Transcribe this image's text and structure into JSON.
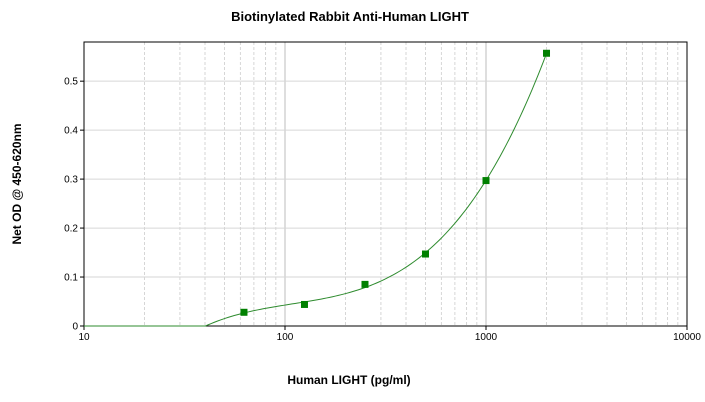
{
  "chart_data": {
    "type": "scatter",
    "title": "Biotinylated Rabbit Anti-Human LIGHT",
    "xlabel": "Human LIGHT (pg/ml)",
    "ylabel": "Net OD @ 450-620nm",
    "xscale": "log",
    "xlim": [
      10,
      10000
    ],
    "ylim": [
      0,
      0.58
    ],
    "xticks": [
      "10",
      "100",
      "1000",
      "10000"
    ],
    "yticks": [
      "0",
      "0.1",
      "0.2",
      "0.3",
      "0.4",
      "0.5"
    ],
    "grid": true,
    "legend": "none",
    "series": [
      {
        "x": [
          62.5,
          125,
          250,
          500,
          1000,
          2000
        ],
        "y": [
          0.028,
          0.044,
          0.085,
          0.147,
          0.297,
          0.557
        ],
        "marker_color": "#008000",
        "fit_curve_color": "#2e8b2e"
      }
    ]
  }
}
